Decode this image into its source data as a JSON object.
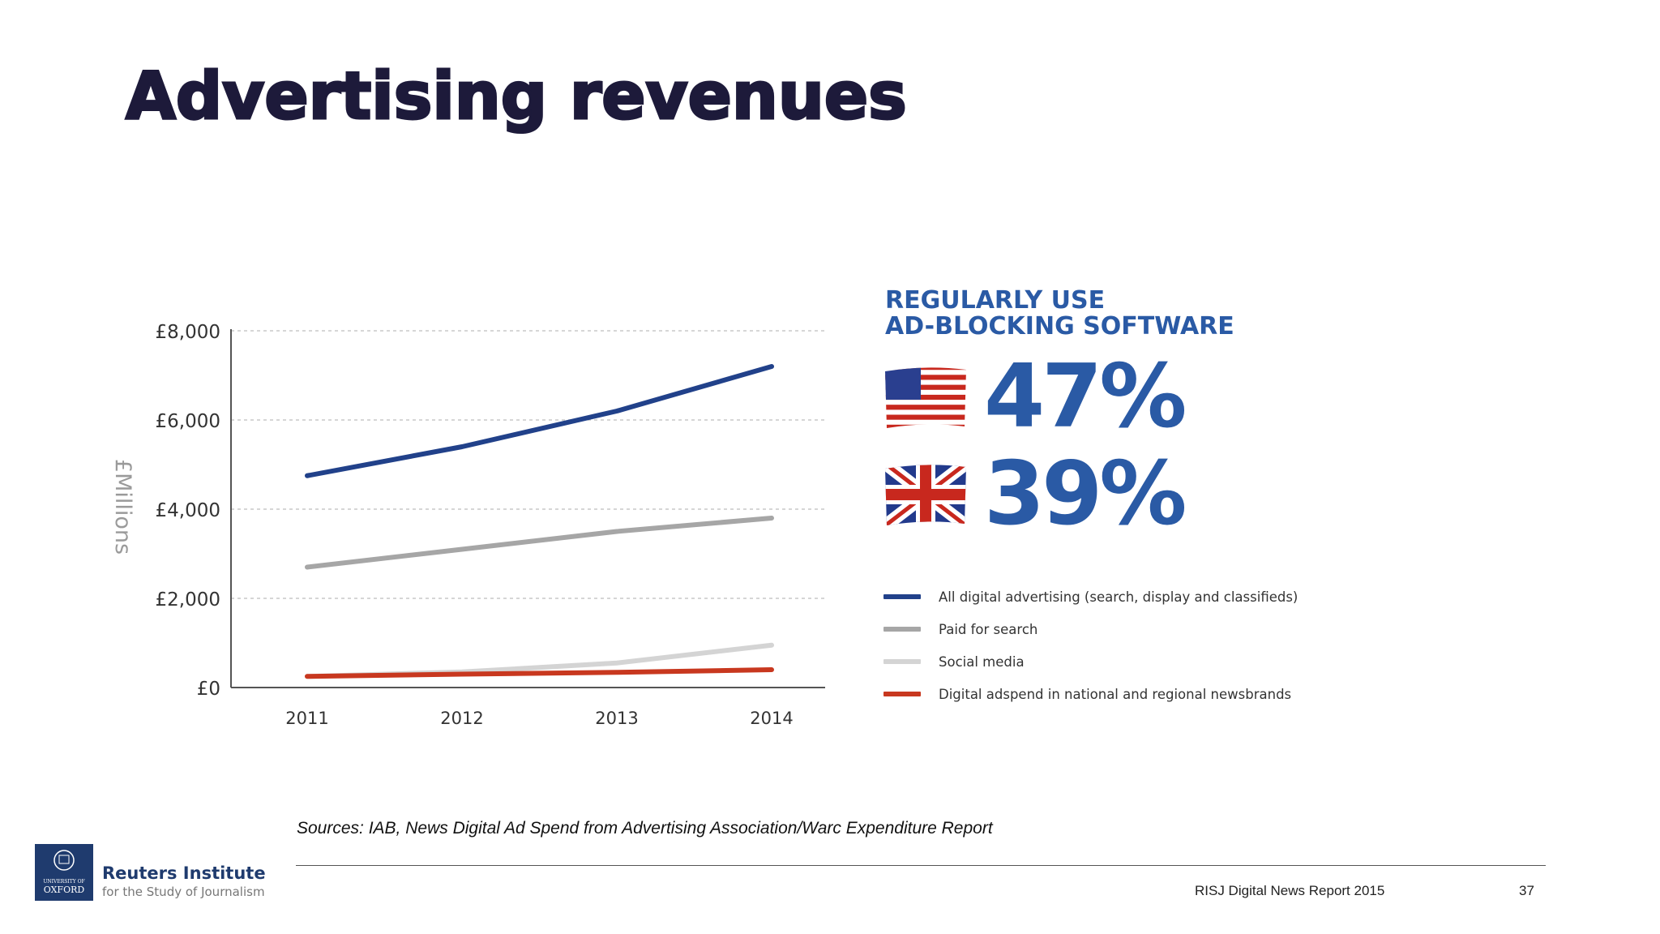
{
  "slide": {
    "title": "Advertising revenues",
    "sources": "Sources: IAB, News Digital Ad Spend from Advertising Association/Warc Expenditure Report",
    "footer_report": "RISJ Digital News Report 2015",
    "page_number": "37"
  },
  "logo": {
    "name": "Reuters Institute",
    "tagline": "for the Study of Journalism",
    "seal_text": [
      "UNIVERSITY OF",
      "OXFORD"
    ]
  },
  "adblock": {
    "heading_line1": "REGULARLY USE",
    "heading_line2": "AD-BLOCKING SOFTWARE",
    "stats": [
      {
        "flag": "us-flag-icon",
        "value": "47%"
      },
      {
        "flag": "uk-flag-icon",
        "value": "39%"
      }
    ],
    "color": "#2a5aa5"
  },
  "chart_data": {
    "type": "line",
    "x": [
      "2011",
      "2012",
      "2013",
      "2014"
    ],
    "ylabel": "£Millions",
    "ylim": [
      0,
      8000
    ],
    "y_ticks": [
      "£0",
      "£2,000",
      "£4,000",
      "£6,000",
      "£8,000"
    ],
    "y_tick_values": [
      0,
      2000,
      4000,
      6000,
      8000
    ],
    "grid": true,
    "legend_position": "right",
    "series": [
      {
        "name": "All digital advertising (search, display and classifieds)",
        "color": "#21418a",
        "values": [
          4750,
          5400,
          6200,
          7200
        ]
      },
      {
        "name": "Paid for search",
        "color": "#a6a6a6",
        "values": [
          2700,
          3100,
          3500,
          3800
        ]
      },
      {
        "name": "Social media",
        "color": "#d4d4d4",
        "values": [
          250,
          350,
          550,
          950
        ]
      },
      {
        "name": "Digital adspend in national and regional newsbrands",
        "color": "#c8381f",
        "values": [
          250,
          300,
          340,
          400
        ]
      }
    ]
  }
}
